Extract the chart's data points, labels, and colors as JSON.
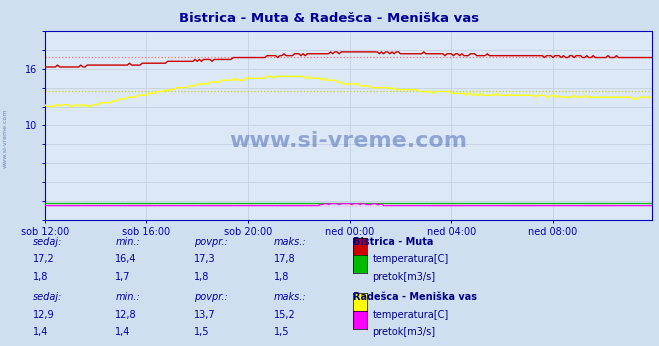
{
  "title": "Bistrica - Muta & Radešca - Meniška vas",
  "title_color": "#000099",
  "bg_color": "#d0dff0",
  "plot_bg_color": "#dce8f5",
  "grid_color": "#c0cce0",
  "axis_color": "#0000bb",
  "x_tick_labels": [
    "sob 12:00",
    "sob 16:00",
    "sob 20:00",
    "ned 00:00",
    "ned 04:00",
    "ned 08:00"
  ],
  "x_tick_positions": [
    0,
    48,
    96,
    144,
    192,
    240
  ],
  "ylim": [
    0,
    20
  ],
  "ytick_show": [
    10,
    16
  ],
  "n_points": 288,
  "bistrica_temp_avg": 17.3,
  "bistrica_temp_min": 16.4,
  "bistrica_temp_max": 17.8,
  "bistrica_temp_current": 17.2,
  "bistrica_pretok_avg": 1.8,
  "bistrica_pretok_min": 1.7,
  "bistrica_pretok_max": 1.8,
  "bistrica_pretok_current": 1.8,
  "radesca_temp_avg": 13.7,
  "radesca_temp_min": 12.8,
  "radesca_temp_max": 15.2,
  "radesca_temp_current": 12.9,
  "radesca_pretok_avg": 1.5,
  "radesca_pretok_min": 1.4,
  "radesca_pretok_max": 1.5,
  "radesca_pretok_current": 1.4,
  "color_bistrica_temp": "#cc0000",
  "color_bistrica_pretok": "#00bb00",
  "color_radesca_temp": "#ffff00",
  "color_radesca_pretok": "#ff00ff",
  "color_avg_bistrica_temp": "#ff6666",
  "color_avg_radesca_temp": "#cccc00",
  "color_avg_bistrica_pretok": "#00bb00",
  "color_avg_radesca_pretok": "#ff88ff",
  "watermark_color": "#3355aa",
  "sidebar_text": "www.si-vreme.com",
  "table_label_color": "#0000aa",
  "table_value_color": "#0000aa",
  "table_header_color": "#000088",
  "section1_name": "Bistrica - Muta",
  "section2_name": "Radešca - Meniška vas",
  "label_sedaj": "sedaj:",
  "label_min": "min.:",
  "label_povpr": "povpr.:",
  "label_maks": "maks.:",
  "label_temperatura": "temperatura[C]",
  "label_pretok": "pretok[m3/s]"
}
